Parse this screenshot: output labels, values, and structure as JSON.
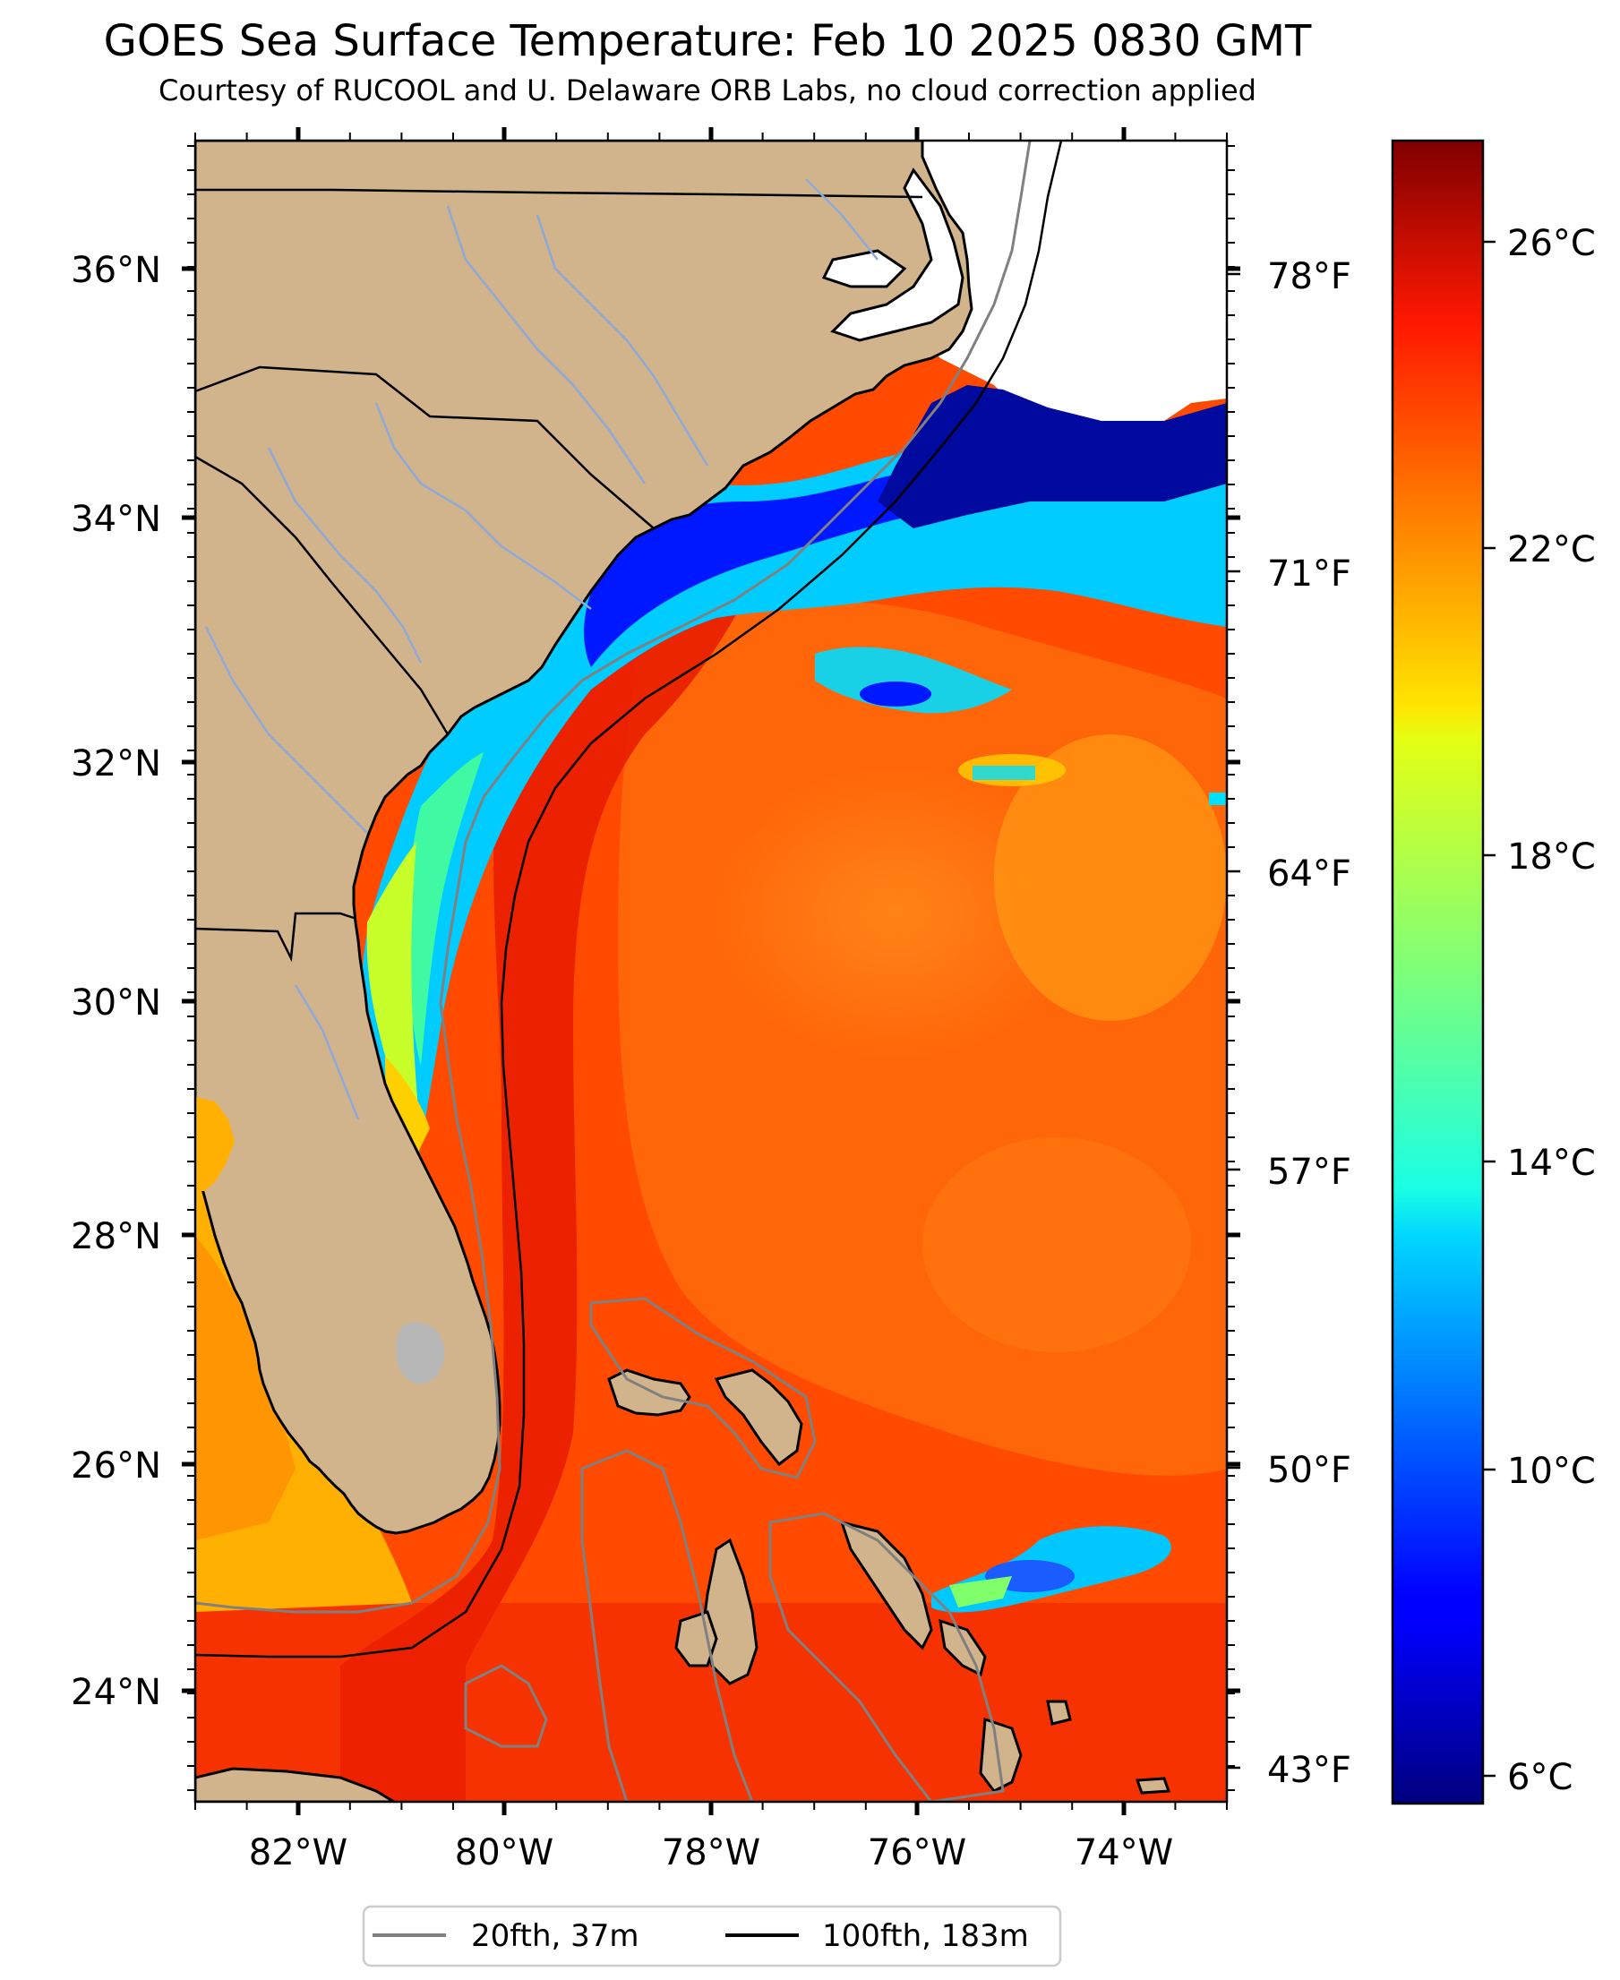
{
  "title": "GOES Sea Surface Temperature: Feb 10 2025 0830 GMT",
  "subtitle": "Courtesy of RUCOOL and U. Delaware ORB Labs, no cloud correction applied",
  "map": {
    "lon_range": [
      -83,
      -73
    ],
    "lat_range": [
      23.2,
      37
    ],
    "lon_ticks": [
      "82°W",
      "80°W",
      "78°W",
      "76°W",
      "74°W"
    ],
    "lat_ticks": [
      "36°N",
      "34°N",
      "32°N",
      "30°N",
      "28°N",
      "26°N",
      "24°N"
    ],
    "fahrenheit_ticks": [
      "78°F",
      "71°F",
      "64°F",
      "57°F",
      "50°F",
      "43°F"
    ],
    "colors": {
      "land": "#d2b48c",
      "rivers": "#8ea9d8",
      "lake": "#b7b7b7",
      "isobath_20fth": "#808080",
      "isobath_100fth": "#000000"
    }
  },
  "colorbar": {
    "colormap": "jet",
    "range_c": [
      5.5,
      27.8
    ],
    "tick_labels": [
      "26°C",
      "22°C",
      "18°C",
      "14°C",
      "10°C",
      "6°C"
    ]
  },
  "legend": {
    "items": [
      {
        "label": "20fth, 37m",
        "color": "#808080"
      },
      {
        "label": "100fth, 183m",
        "color": "#000000"
      }
    ]
  }
}
